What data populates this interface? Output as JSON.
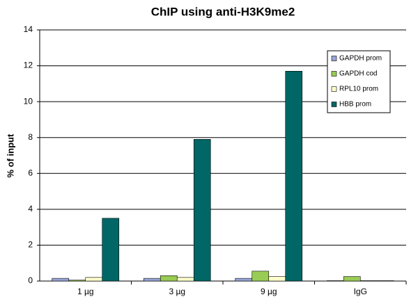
{
  "chart_data": {
    "type": "bar",
    "title": "ChIP using anti-H3K9me2",
    "y_label": "% of input",
    "categories": [
      "1 µg",
      "3 µg",
      "9 µg",
      "IgG"
    ],
    "series": [
      {
        "name": "GAPDH prom",
        "color": "#9aa6d8",
        "values": [
          0.15,
          0.15,
          0.15,
          0.02
        ]
      },
      {
        "name": "GAPDH cod",
        "color": "#99cc55",
        "values": [
          0.05,
          0.3,
          0.55,
          0.25
        ]
      },
      {
        "name": "RPL10 prom",
        "color": "#ffffcc",
        "values": [
          0.2,
          0.2,
          0.25,
          0.02
        ]
      },
      {
        "name": "HBB prom",
        "color": "#006666",
        "values": [
          3.5,
          7.9,
          11.7,
          0.02
        ]
      }
    ],
    "ylim": [
      0,
      14
    ],
    "yticks": [
      0,
      2,
      4,
      6,
      8,
      10,
      12,
      14
    ],
    "grid": true,
    "legend": "upper right"
  }
}
